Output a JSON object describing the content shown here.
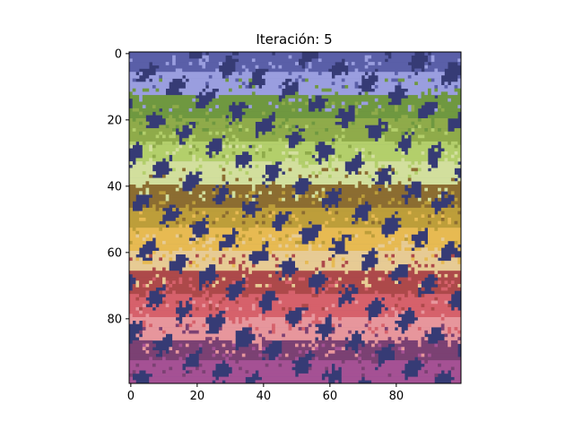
{
  "chart_data": {
    "type": "heatmap",
    "title": "Iteración: 5",
    "xlabel": "",
    "ylabel": "",
    "grid_size": [
      100,
      100
    ],
    "xlim": [
      -0.5,
      99.5
    ],
    "ylim": [
      99.5,
      -0.5
    ],
    "y_axis_inverted": true,
    "x_ticks": [
      0,
      20,
      40,
      60,
      80
    ],
    "y_ticks": [
      0,
      20,
      40,
      60,
      80
    ],
    "background_color": "#363b75",
    "band_rows": [
      {
        "row_start": 0,
        "row_end": 6,
        "color": "#5a5fa8"
      },
      {
        "row_start": 6,
        "row_end": 13,
        "color": "#9a9edf"
      },
      {
        "row_start": 13,
        "row_end": 20,
        "color": "#6f9840"
      },
      {
        "row_start": 20,
        "row_end": 27,
        "color": "#8fab4a"
      },
      {
        "row_start": 27,
        "row_end": 33,
        "color": "#b3cf6b"
      },
      {
        "row_start": 33,
        "row_end": 40,
        "color": "#d2df9d"
      },
      {
        "row_start": 40,
        "row_end": 47,
        "color": "#8c6d31"
      },
      {
        "row_start": 47,
        "row_end": 53,
        "color": "#bd9e3a"
      },
      {
        "row_start": 53,
        "row_end": 60,
        "color": "#e7ba52"
      },
      {
        "row_start": 60,
        "row_end": 66,
        "color": "#e7cb94"
      },
      {
        "row_start": 66,
        "row_end": 73,
        "color": "#ad494a"
      },
      {
        "row_start": 73,
        "row_end": 80,
        "color": "#d6616b"
      },
      {
        "row_start": 80,
        "row_end": 87,
        "color": "#e7969c"
      },
      {
        "row_start": 87,
        "row_end": 93,
        "color": "#7b4173"
      },
      {
        "row_start": 93,
        "row_end": 100,
        "color": "#a55194"
      }
    ],
    "legend": "none",
    "grid": false
  }
}
